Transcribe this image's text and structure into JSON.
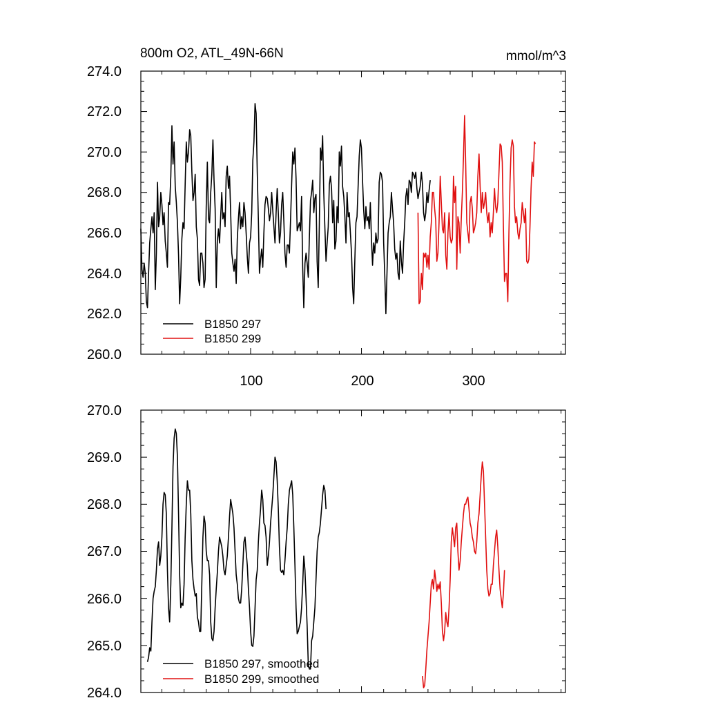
{
  "chart_data": [
    {
      "type": "line",
      "title": "800m O2, ATL_49N-66N",
      "units": "mmol/m^3",
      "xlabel": "",
      "ylabel": "",
      "xlim": [
        1,
        384
      ],
      "ylim": [
        260,
        274
      ],
      "yticks": [
        "274.0",
        "272.0",
        "270.0",
        "268.0",
        "266.0",
        "264.0",
        "262.0",
        "260.0"
      ],
      "xticks": [
        "100",
        "200",
        "300"
      ],
      "legend_position": "bottom-left",
      "series": [
        {
          "name": "B1850 297",
          "color": "#000000",
          "x_start": 1,
          "values": [
            266.2,
            264.2,
            263.8,
            264.5,
            264.0,
            262.6,
            262.3,
            264.0,
            265.5,
            266.2,
            266.8,
            266.0,
            267.0,
            263.2,
            265.0,
            268.5,
            266.3,
            266.8,
            268.0,
            267.4,
            266.4,
            267.0,
            265.6,
            265.0,
            264.3,
            267.5,
            267.4,
            268.8,
            271.3,
            269.4,
            270.5,
            268.3,
            267.5,
            266.5,
            264.9,
            262.5,
            263.8,
            265.7,
            266.5,
            266.2,
            268.4,
            270.5,
            269.5,
            270.0,
            271.1,
            270.8,
            269.0,
            267.6,
            268.0,
            268.9,
            266.3,
            265.7,
            263.7,
            263.4,
            265.0,
            265.0,
            264.5,
            263.3,
            263.7,
            267.3,
            269.5,
            266.7,
            266.5,
            268.0,
            268.9,
            270.6,
            268.6,
            267.2,
            263.3,
            265.6,
            266.2,
            265.5,
            266.8,
            268.0,
            266.7,
            267.0,
            266.3,
            268.8,
            269.3,
            268.2,
            268.8,
            267.0,
            265.0,
            264.5,
            264.1,
            264.7,
            263.5,
            265.7,
            266.7,
            267.5,
            266.2,
            266.8,
            266.3,
            267.5,
            267.0,
            266.0,
            264.8,
            264.0,
            265.5,
            265.8,
            267.0,
            269.6,
            270.5,
            272.4,
            271.9,
            269.0,
            266.7,
            264.0,
            264.7,
            265.2,
            264.3,
            266.0,
            267.4,
            267.8,
            267.7,
            267.2,
            266.6,
            267.0,
            268.0,
            267.1,
            266.3,
            265.5,
            267.0,
            268.2,
            267.0,
            265.5,
            266.0,
            267.4,
            268.0,
            266.6,
            265.0,
            264.3,
            265.4,
            265.4,
            265.0,
            266.6,
            268.4,
            270.0,
            269.4,
            270.2,
            268.7,
            266.1,
            266.3,
            266.5,
            266.1,
            267.8,
            264.3,
            262.3,
            264.5,
            265.0,
            264.5,
            263.8,
            265.8,
            267.6,
            268.0,
            268.6,
            267.0,
            267.7,
            267.9,
            264.6,
            263.3,
            266.4,
            270.2,
            269.6,
            270.8,
            268.0,
            266.2,
            264.6,
            265.5,
            266.3,
            268.4,
            268.8,
            268.2,
            266.5,
            267.6,
            265.2,
            265.6,
            267.3,
            266.5,
            270.0,
            269.3,
            270.3,
            268.3,
            267.8,
            266.8,
            265.5,
            268.0,
            266.8,
            267.0,
            266.0,
            265.0,
            263.3,
            262.5,
            264.6,
            266.5,
            266.8,
            268.3,
            269.8,
            270.6,
            270.2,
            268.6,
            267.1,
            266.2,
            267.3,
            266.6,
            266.8,
            266.2,
            267.5,
            265.7,
            264.4,
            265.5,
            265.0,
            266.0,
            265.5,
            265.7,
            268.5,
            269.0,
            268.9,
            268.5,
            265.5,
            263.9,
            262.0,
            264.0,
            266.0,
            266.5,
            266.8,
            268.0,
            267.2,
            266.5,
            265.2,
            264.7,
            265.0,
            264.0,
            263.7,
            265.6,
            264.6,
            264.0,
            265.5,
            266.5,
            267.8,
            268.2,
            267.4,
            268.6,
            268.5,
            268.0,
            269.0,
            268.9,
            268.7,
            269.0,
            268.2,
            267.7,
            268.0,
            268.3,
            269.0,
            268.4,
            267.0,
            266.6,
            267.0,
            268.0,
            267.5,
            268.1,
            268.6
          ]
        },
        {
          "name": "B1850 299",
          "color": "#e01010",
          "x_start": 251,
          "values": [
            267.0,
            262.5,
            262.6,
            264.0,
            263.2,
            265.0,
            264.8,
            265.0,
            264.3,
            264.9,
            264.2,
            265.8,
            266.5,
            268.0,
            268.0,
            267.2,
            266.6,
            264.6,
            265.0,
            266.5,
            268.8,
            267.5,
            266.2,
            266.0,
            267.0,
            264.9,
            264.2,
            266.0,
            267.0,
            265.8,
            265.5,
            265.7,
            268.8,
            267.5,
            268.3,
            264.2,
            266.8,
            266.5,
            265.0,
            266.7,
            268.0,
            269.8,
            271.8,
            269.4,
            266.5,
            266.0,
            265.5,
            267.5,
            267.8,
            267.2,
            266.0,
            266.2,
            266.5,
            267.0,
            268.8,
            269.9,
            268.3,
            267.0,
            268.0,
            267.2,
            267.5,
            268.0,
            267.0,
            266.5,
            267.0,
            265.8,
            266.5,
            266.0,
            267.0,
            268.2,
            267.3,
            267.0,
            267.5,
            269.0,
            270.4,
            270.3,
            269.5,
            266.3,
            263.6,
            264.0,
            264.0,
            262.6,
            266.0,
            268.5,
            270.2,
            270.6,
            270.3,
            267.3,
            266.5,
            266.8,
            266.0,
            265.7,
            266.2,
            266.5,
            267.5,
            267.0,
            266.5,
            267.2,
            264.6,
            264.5,
            264.7,
            266.3,
            268.2,
            269.5,
            268.8,
            270.5,
            270.4
          ]
        }
      ]
    },
    {
      "type": "line",
      "title": "",
      "xlabel": "",
      "ylabel": "",
      "xlim": [
        1,
        384
      ],
      "ylim": [
        264,
        270
      ],
      "yticks": [
        "270.0",
        "269.0",
        "268.0",
        "267.0",
        "266.0",
        "265.0",
        "264.0"
      ],
      "xticks": [],
      "legend_position": "bottom-left",
      "series": [
        {
          "name": "B1850 297, smoothed",
          "color": "#000000",
          "x_start": 7,
          "values": [
            264.65,
            264.75,
            264.95,
            264.88,
            265.5,
            266.0,
            266.15,
            266.25,
            266.6,
            267.05,
            267.2,
            266.7,
            266.9,
            267.3,
            268.0,
            268.25,
            268.2,
            267.8,
            266.6,
            265.8,
            265.5,
            266.3,
            267.5,
            268.8,
            269.4,
            269.6,
            269.5,
            269.0,
            267.8,
            266.5,
            265.8,
            265.9,
            265.85,
            266.3,
            267.3,
            268.0,
            268.5,
            268.3,
            268.3,
            267.8,
            266.8,
            266.4,
            266.2,
            266.05,
            266.1,
            265.6,
            265.5,
            265.3,
            265.3,
            266.3,
            267.3,
            267.75,
            267.6,
            267.0,
            266.8,
            266.8,
            266.5,
            265.5,
            265.15,
            265.1,
            265.3,
            265.8,
            266.2,
            266.55,
            267.0,
            267.3,
            267.2,
            267.1,
            266.9,
            266.6,
            266.5,
            266.7,
            266.9,
            267.3,
            267.75,
            268.1,
            267.95,
            267.8,
            267.5,
            267.0,
            266.5,
            266.3,
            266.0,
            265.9,
            265.9,
            266.2,
            266.7,
            267.2,
            267.3,
            267.0,
            266.7,
            266.2,
            265.8,
            265.3,
            265.0,
            264.98,
            265.2,
            265.8,
            266.4,
            266.6,
            267.2,
            267.6,
            267.9,
            268.3,
            268.1,
            267.6,
            267.55,
            267.3,
            266.7,
            266.9,
            267.2,
            267.6,
            267.9,
            268.2,
            268.6,
            269.0,
            268.9,
            268.5,
            267.9,
            267.1,
            266.6,
            266.55,
            266.6,
            266.5,
            266.8,
            267.2,
            267.5,
            268.0,
            268.3,
            268.4,
            268.5,
            268.2,
            267.5,
            266.7,
            265.8,
            265.25,
            265.3,
            265.4,
            265.5,
            265.8,
            266.3,
            266.9,
            266.6,
            266.0,
            265.4,
            264.6,
            264.5,
            264.5,
            265.1,
            265.2,
            265.5,
            265.8,
            266.4,
            267.0,
            267.3,
            267.4,
            267.6,
            267.9,
            268.2,
            268.4,
            268.3,
            267.9
          ]
        },
        {
          "name": "B1850 299, smoothed",
          "color": "#e01010",
          "x_start": 255,
          "values": [
            264.35,
            264.1,
            264.15,
            264.5,
            264.9,
            265.2,
            265.5,
            265.9,
            266.3,
            266.4,
            266.2,
            266.6,
            266.4,
            266.15,
            266.3,
            266.2,
            266.35,
            265.9,
            265.3,
            265.1,
            265.3,
            265.7,
            265.5,
            265.4,
            265.8,
            266.4,
            267.2,
            267.5,
            267.3,
            267.1,
            267.5,
            267.6,
            267.0,
            266.6,
            266.8,
            267.2,
            267.5,
            267.8,
            268.0,
            268.0,
            268.1,
            268.15,
            267.9,
            267.6,
            267.5,
            267.3,
            267.2,
            267.0,
            266.95,
            267.2,
            267.6,
            267.8,
            268.2,
            268.6,
            268.9,
            268.7,
            268.0,
            267.3,
            266.6,
            266.2,
            266.05,
            266.1,
            266.3,
            266.3,
            266.7,
            267.0,
            267.3,
            267.45,
            267.1,
            266.6,
            266.2,
            266.0,
            265.8,
            266.1,
            266.6
          ]
        }
      ]
    }
  ]
}
